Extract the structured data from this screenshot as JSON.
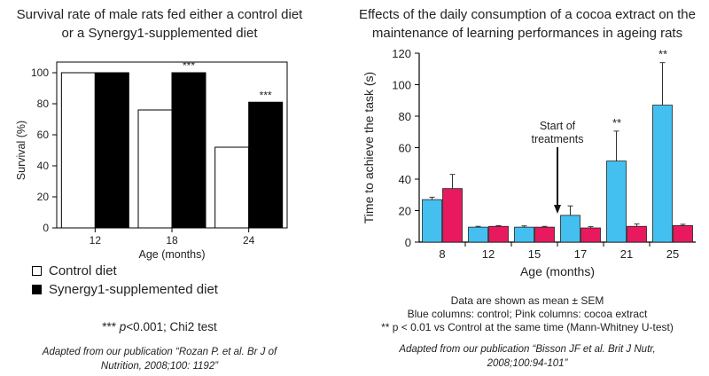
{
  "chart_data": [
    {
      "type": "bar",
      "title_lines": [
        "Survival rate of male rats fed either a control diet",
        "or a Synergy1-supplemented diet"
      ],
      "xlabel": "Age (months)",
      "ylabel": "Survival (%)",
      "categories": [
        "12",
        "18",
        "24"
      ],
      "ylim": [
        0,
        100
      ],
      "yticks": [
        "0",
        "20",
        "40",
        "60",
        "80",
        "100"
      ],
      "series": [
        {
          "name": "Control diet",
          "values": [
            100,
            76,
            52
          ],
          "color": "#ffffff"
        },
        {
          "name": "Synergy1-supplemented diet",
          "values": [
            100,
            100,
            81
          ],
          "color": "#000000"
        }
      ],
      "annotations": [
        "",
        "***",
        "***"
      ],
      "legend": [
        "Control diet",
        "Synergy1-supplemented diet"
      ],
      "footnote_stars": "***",
      "footnote_p": "p",
      "footnote_rest": "<0.001; Chi2 test",
      "citation_lines": [
        "Adapted from our publication “Rozan P. et al. Br J of",
        "Nutrition, 2008;100: 1192”"
      ]
    },
    {
      "type": "bar",
      "title_lines": [
        "Effects of the daily consumption of a cocoa extract on the",
        "maintenance of learning performances in ageing rats"
      ],
      "xlabel": "Age (months)",
      "ylabel": "Time to achieve the task (s)",
      "categories": [
        "8",
        "12",
        "15",
        "17",
        "21",
        "25"
      ],
      "ylim": [
        0,
        120
      ],
      "yticks": [
        "0",
        "20",
        "40",
        "60",
        "80",
        "100",
        "120"
      ],
      "series": [
        {
          "name": "control",
          "values": [
            27,
            9.5,
            9.5,
            17,
            51.5,
            87
          ],
          "errors": [
            1.5,
            0.5,
            0.8,
            6,
            19,
            27
          ],
          "color": "#43c0f0"
        },
        {
          "name": "cocoa extract",
          "values": [
            34,
            10,
            9.5,
            9,
            10,
            10.5
          ],
          "errors": [
            9,
            0.5,
            0.5,
            0.8,
            1.5,
            0.8
          ],
          "color": "#e8195f"
        }
      ],
      "annotations": [
        "",
        "",
        "",
        "",
        "**",
        "**"
      ],
      "arrow_label_lines": [
        "Start of",
        "treatments"
      ],
      "arrow_value": 18,
      "notes": [
        "Data are shown as mean ± SEM",
        "Blue columns: control; Pink columns: cocoa extract",
        "** p < 0.01 vs Control at the same time (Mann-Whitney U-test)"
      ],
      "citation_lines": [
        "Adapted from our publication “Bisson JF et al. Brit J Nutr,",
        "2008;100:94-101”"
      ]
    }
  ]
}
